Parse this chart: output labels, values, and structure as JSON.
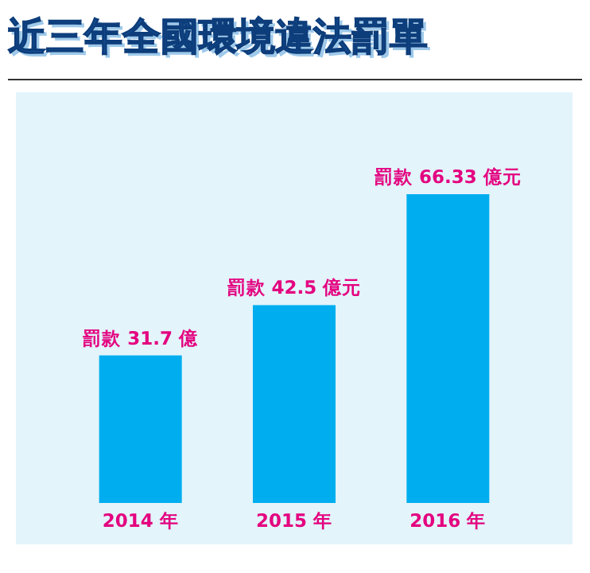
{
  "chart_data": {
    "type": "bar",
    "title": "近三年全國環境違法罰單",
    "categories": [
      "2014 年",
      "2015 年",
      "2016 年"
    ],
    "values": [
      31.7,
      42.5,
      66.33
    ],
    "value_labels": [
      "罰款 31.7 億",
      "罰款 42.5 億元",
      "罰款 66.33 億元"
    ],
    "color": "#00aeef"
  }
}
